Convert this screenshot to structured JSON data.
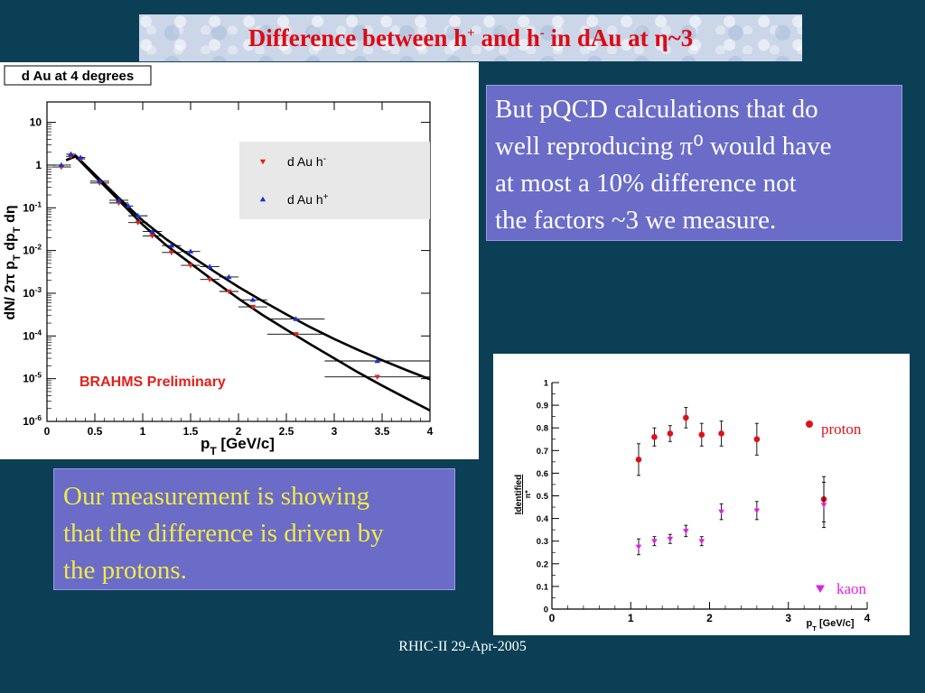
{
  "slide": {
    "title_parts": [
      "Difference between h",
      "+",
      " and h",
      "-",
      " in dAu at ",
      "η",
      "~3"
    ],
    "callout_pqcd": [
      "But pQCD calculations that do",
      "well reproducing π⁰ would have",
      "at most a 10% difference not",
      "the factors ~3 we measure."
    ],
    "callout_measurement": [
      "Our measurement is showing",
      "that the difference is driven by",
      "the protons."
    ],
    "footer": "RHIC-II 29-Apr-2005"
  },
  "colors": {
    "background": "#0b3f55",
    "title_text": "#dd0b14",
    "callout_fill": "#6a6cc7",
    "callout_white_text": "#ffffff",
    "callout_yellow_text": "#f2e94a",
    "h_minus": "#e0201a",
    "h_plus": "#1a2fd8",
    "proton": "#e0101a",
    "kaon": "#e020e0"
  },
  "chart_data": [
    {
      "type": "scatter",
      "label": "d Au at 4 degrees",
      "annotation": "BRAHMS Preliminary",
      "xlabel": "p_T [GeV/c]",
      "ylabel": "dN/ 2π p_T dp_T dη",
      "xlim": [
        0,
        4
      ],
      "ylim": [
        1e-06,
        30
      ],
      "yscale": "log",
      "x_ticks": [
        "0",
        "0.5",
        "1",
        "1.5",
        "2",
        "2.5",
        "3",
        "3.5",
        "4"
      ],
      "y_ticks": [
        {
          "base": "10",
          "exp": "-6"
        },
        {
          "base": "10",
          "exp": "-5"
        },
        {
          "base": "10",
          "exp": "-4"
        },
        {
          "base": "10",
          "exp": "-3"
        },
        {
          "base": "10",
          "exp": "-2"
        },
        {
          "base": "10",
          "exp": "-1"
        },
        {
          "base": "1",
          "exp": ""
        },
        {
          "base": "10",
          "exp": ""
        }
      ],
      "legend_position": "top-right",
      "legend": [
        {
          "name": "d Au h",
          "sup": "-",
          "marker": "triangle-down"
        },
        {
          "name": "d Au h",
          "sup": "+",
          "marker": "triangle-up"
        }
      ],
      "series": [
        {
          "name": "d Au h-",
          "marker": "triangle-down",
          "x": [
            0.15,
            0.25,
            0.35,
            0.55,
            0.75,
            0.95,
            1.1,
            1.3,
            1.5,
            1.7,
            1.9,
            2.15,
            2.6,
            3.45
          ],
          "y": [
            0.9,
            1.6,
            1.4,
            0.38,
            0.13,
            0.045,
            0.022,
            0.009,
            0.0045,
            0.0021,
            0.0011,
            0.00048,
            0.00011,
            1.1e-05
          ],
          "xerr": [
            0.1,
            0.05,
            0.05,
            0.1,
            0.1,
            0.1,
            0.1,
            0.1,
            0.1,
            0.1,
            0.1,
            0.15,
            0.3,
            0.55
          ]
        },
        {
          "name": "d Au h+",
          "marker": "triangle-up",
          "x": [
            0.15,
            0.25,
            0.35,
            0.55,
            0.75,
            0.85,
            0.95,
            1.1,
            1.3,
            1.5,
            1.7,
            1.9,
            2.15,
            2.6,
            3.45
          ],
          "y": [
            1.0,
            1.8,
            1.5,
            0.42,
            0.15,
            0.11,
            0.065,
            0.028,
            0.013,
            0.0095,
            0.0042,
            0.0024,
            0.0007,
            0.00025,
            2.6e-05
          ],
          "xerr": [
            0.1,
            0.05,
            0.05,
            0.1,
            0.1,
            0.05,
            0.1,
            0.1,
            0.1,
            0.1,
            0.1,
            0.1,
            0.15,
            0.3,
            0.55
          ]
        }
      ],
      "fit_curves": [
        {
          "x": [
            0.2,
            0.3,
            0.5,
            0.75,
            1.0,
            1.25,
            1.5,
            1.75,
            2.0,
            2.25,
            2.5,
            2.75,
            3.0,
            3.25,
            3.5,
            3.75,
            4.0
          ],
          "y": [
            1.3,
            1.6,
            0.55,
            0.15,
            0.04,
            0.013,
            0.005,
            0.0019,
            0.00075,
            0.00031,
            0.00014,
            6.4e-05,
            3e-05,
            1.4e-05,
            6.9e-06,
            3.5e-06,
            1.8e-06
          ]
        },
        {
          "x": [
            0.2,
            0.3,
            0.5,
            0.75,
            1.0,
            1.25,
            1.5,
            1.75,
            2.0,
            2.25,
            2.5,
            2.75,
            3.0,
            3.25,
            3.5,
            3.75,
            4.0
          ],
          "y": [
            1.3,
            1.65,
            0.6,
            0.17,
            0.05,
            0.018,
            0.0075,
            0.0032,
            0.0014,
            0.00066,
            0.00032,
            0.00016,
            8.5e-05,
            4.7e-05,
            2.7e-05,
            1.6e-05,
            9.7e-06
          ]
        }
      ]
    },
    {
      "type": "scatter",
      "xlabel": "p_T [GeV/c]",
      "ylabel": "Identified / π*",
      "xlim": [
        0,
        4
      ],
      "ylim": [
        0,
        1
      ],
      "x_ticks": [
        "0",
        "1",
        "2",
        "3",
        "4"
      ],
      "y_ticks": [
        "0",
        "0.1",
        "0.2",
        "0.3",
        "0.4",
        "0.5",
        "0.6",
        "0.7",
        "0.8",
        "0.9",
        "1"
      ],
      "legend_position": "right",
      "series": [
        {
          "name": "proton",
          "marker": "circle",
          "x": [
            1.1,
            1.3,
            1.5,
            1.7,
            1.9,
            2.15,
            2.6,
            3.45
          ],
          "y": [
            0.66,
            0.76,
            0.775,
            0.845,
            0.77,
            0.775,
            0.75,
            0.485
          ],
          "yerr": [
            0.07,
            0.04,
            0.035,
            0.045,
            0.05,
            0.055,
            0.07,
            0.1
          ]
        },
        {
          "name": "kaon",
          "marker": "triangle-down",
          "x": [
            1.1,
            1.3,
            1.5,
            1.7,
            1.9,
            2.15,
            2.6,
            3.45
          ],
          "y": [
            0.275,
            0.3,
            0.31,
            0.345,
            0.3,
            0.43,
            0.435,
            0.46
          ],
          "yerr": [
            0.035,
            0.02,
            0.02,
            0.025,
            0.02,
            0.035,
            0.04,
            0.1
          ]
        }
      ]
    }
  ]
}
